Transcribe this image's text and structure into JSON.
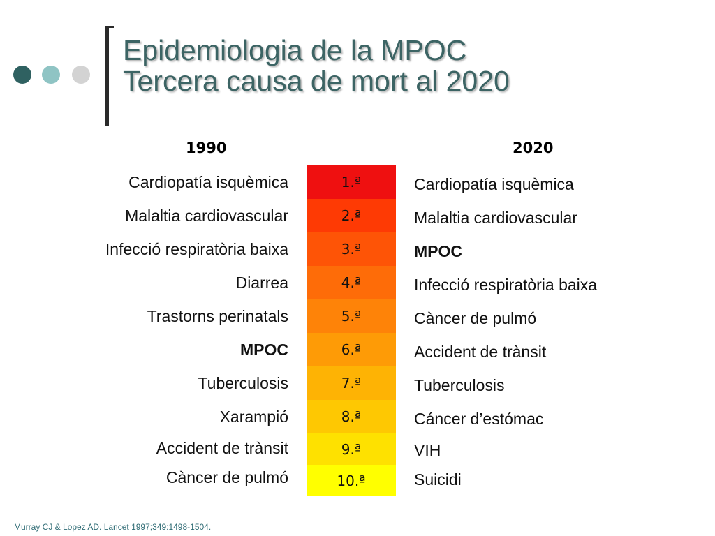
{
  "slide": {
    "title_line1": "Epidemiologia de la MPOC",
    "title_line2": "Tercera causa de mort al 2020",
    "decor_dot_colors": [
      "#2f6161",
      "#8fc4c4",
      "#d3d3d3"
    ],
    "accent_color": "#3c6464"
  },
  "table": {
    "year_left": "1990",
    "year_right": "2020",
    "ranks": [
      "1.ª",
      "2.ª",
      "3.ª",
      "4.ª",
      "5.ª",
      "6.ª",
      "7.ª",
      "8.ª",
      "9.ª",
      "10.ª"
    ],
    "rank_colors": [
      "#ef1010",
      "#fe3a04",
      "#fe5406",
      "#fe6c08",
      "#fe8308",
      "#fe9b06",
      "#feb304",
      "#fec802",
      "#fee100",
      "#ffff00"
    ],
    "causes_1990": [
      "Cardiopatía isquèmica",
      "Malaltia cardiovascular",
      "Infecció respiratòria baixa",
      "Diarrea",
      "Trastorns perinatals",
      "MPOC",
      "Tuberculosis",
      "Xarampió",
      "Accident de trànsit",
      "Càncer de pulmó"
    ],
    "causes_2020": [
      "Cardiopatía isquèmica",
      "Malaltia cardiovascular",
      "MPOC",
      "Infecció respiratòria baixa",
      "Càncer de pulmó",
      "Accident de trànsit",
      "Tuberculosis",
      "Cáncer d’estómac",
      "VIH",
      "Suicidi"
    ]
  },
  "citation": "Murray CJ & Lopez AD. Lancet 1997;349:1498-1504."
}
